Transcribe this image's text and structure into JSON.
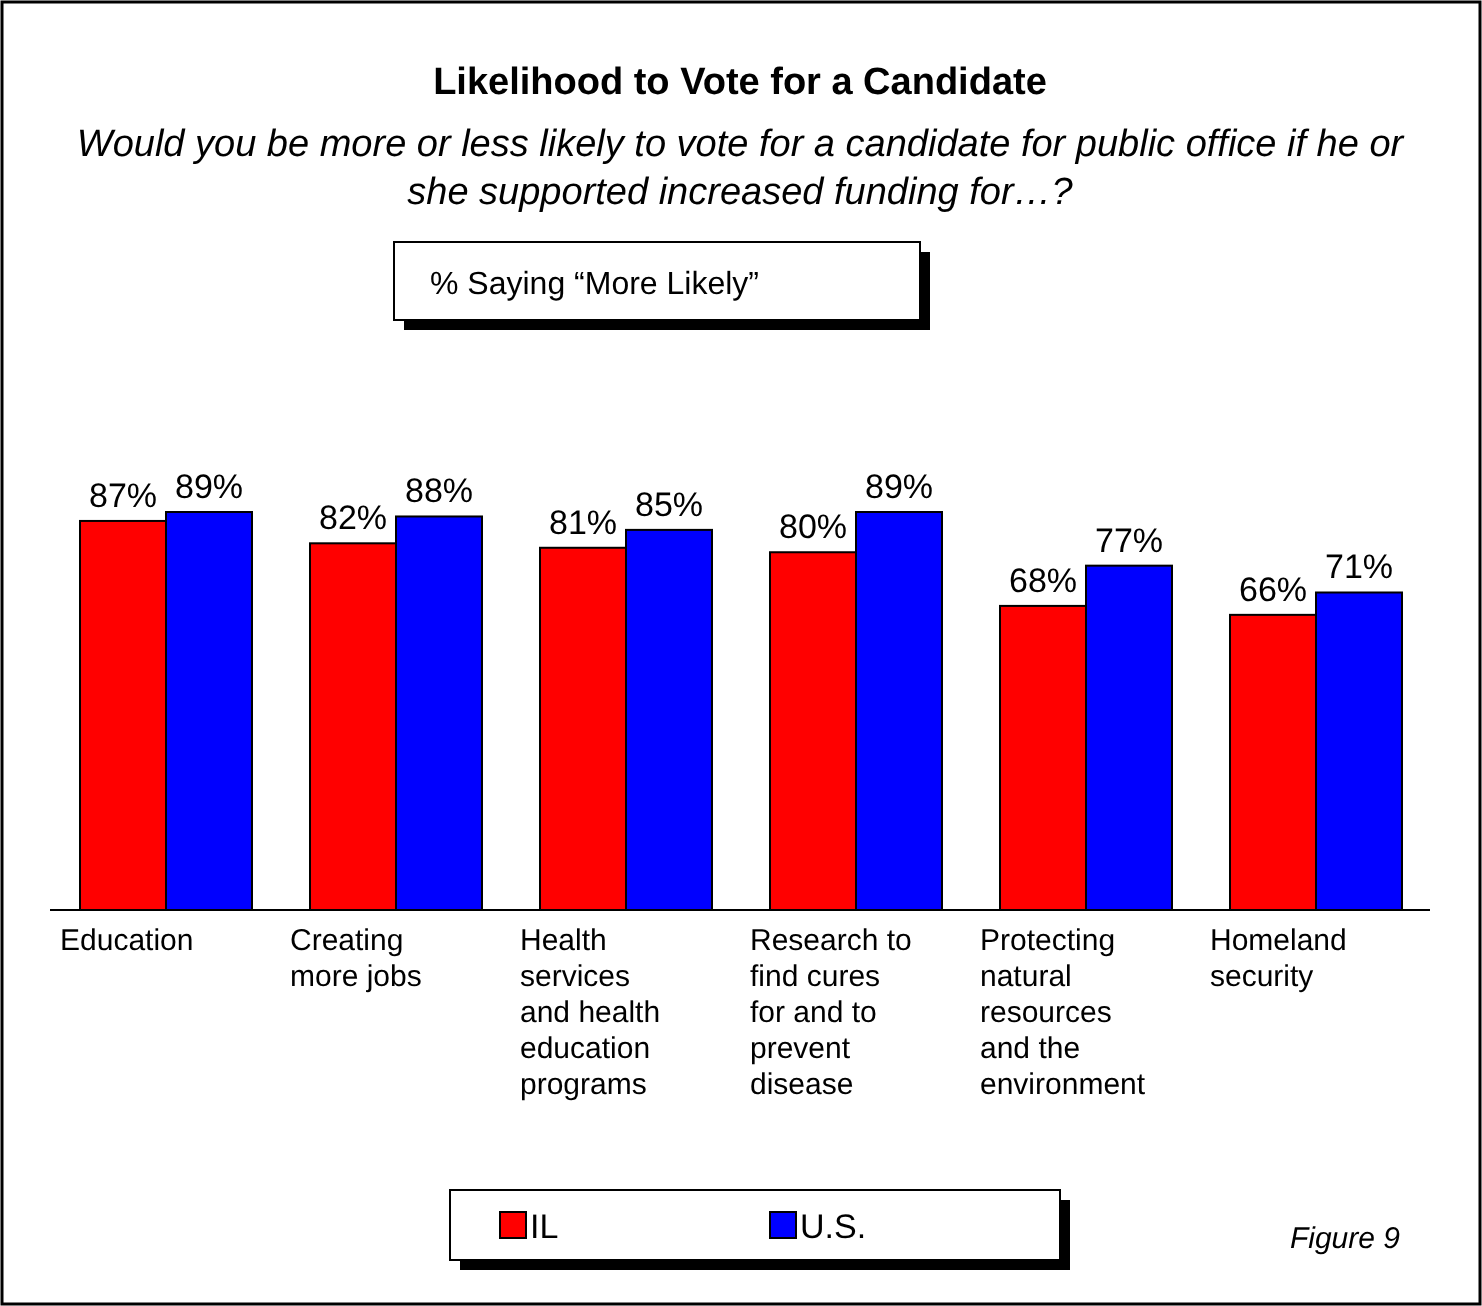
{
  "chart_data": {
    "type": "bar",
    "title": "Likelihood to Vote for a Candidate",
    "subtitle": "Would you be more or less likely to vote for a candidate for public office if he or she supported increased funding for…?",
    "categories": [
      "Education",
      "Creating more jobs",
      "Health services and health education programs",
      "Research to find cures for and to prevent disease",
      "Protecting natural resources and the environment",
      "Homeland security"
    ],
    "series": [
      {
        "name": "IL",
        "color": "#ff0000",
        "values": [
          87,
          82,
          81,
          80,
          68,
          66
        ],
        "value_labels": [
          "87%",
          "82%",
          "81%",
          "80%",
          "68%",
          "66%"
        ]
      },
      {
        "name": "U.S.",
        "color": "#0000ff",
        "values": [
          89,
          88,
          85,
          89,
          77,
          71
        ],
        "value_labels": [
          "89%",
          "88%",
          "85%",
          "89%",
          "77%",
          "71%"
        ]
      }
    ],
    "legend": "bottom",
    "annotations": [
      "% Saying “More Likely”",
      "Figure 9"
    ]
  }
}
